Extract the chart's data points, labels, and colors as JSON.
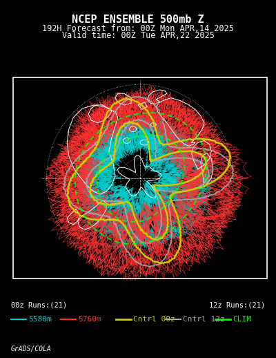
{
  "title_line1": "NCEP ENSEMBLE 500mb Z",
  "title_line2": "192H Forecast from: 00Z Mon APR,14 2025",
  "title_line3": "Valid time: 00Z Tue APR,22 2025",
  "bg_color": "#000000",
  "legend_items": [
    {
      "label": "5580m",
      "color": "#00cccc",
      "lw": 1.5
    },
    {
      "label": "5760m",
      "color": "#ff3333",
      "lw": 1.5
    },
    {
      "label": "Cntrl 00z",
      "color": "#cccc00",
      "lw": 2.0
    },
    {
      "label": "Cntrl 12z",
      "color": "#aaaaaa",
      "lw": 1.5
    },
    {
      "label": "CLIM",
      "color": "#00ff00",
      "lw": 2.0
    }
  ],
  "label_00z": "00z Runs:(21)",
  "label_12z": "12z Runs:(21)",
  "credit": "GrADS/COLA",
  "n_ensemble_00z": 21,
  "n_ensemble_12z": 21,
  "title_color": "#ffffff",
  "title_fontsize": 11,
  "subtitle_fontsize": 8.5,
  "legend_fontsize": 8,
  "map_rect_color": "#ffffff",
  "grid_color": "#ffffff",
  "land_color": "#ffffff",
  "cyan_color": "#00cccc",
  "red_color": "#ff3333",
  "yellow_color": "#cccc00",
  "gray_color": "#aaaaaa",
  "green_color": "#00ff00"
}
